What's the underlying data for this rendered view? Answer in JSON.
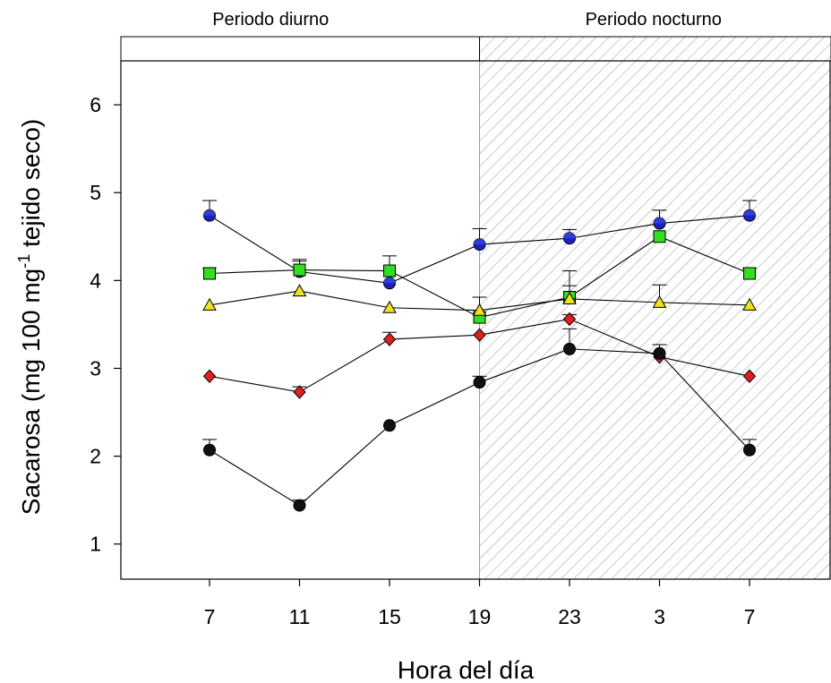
{
  "chart_data": {
    "type": "line",
    "xlabel": "Hora del día",
    "ylabel_main": "Sacarosa (mg 100 mg",
    "ylabel_sup": "-1",
    "ylabel_tail": " tejido seco)",
    "categories": [
      "7",
      "11",
      "15",
      "19",
      "23",
      "3",
      "7"
    ],
    "ylim": [
      0.6,
      6.5
    ],
    "yticks": [
      1,
      2,
      3,
      4,
      5,
      6
    ],
    "grid": false,
    "legend": "none",
    "periods": [
      {
        "label": "Periodo diurno",
        "from_index": -1,
        "to_index": 3,
        "hatched": false
      },
      {
        "label": "Periodo nocturno",
        "from_index": 3,
        "to_index": 7,
        "hatched": true
      }
    ],
    "series": [
      {
        "marker": "circle-half",
        "color": "#1f1fbf",
        "values": [
          4.74,
          4.1,
          3.97,
          4.41,
          4.48,
          4.65,
          4.74
        ],
        "errors": [
          0.17,
          0.12,
          0.0,
          0.18,
          0.1,
          0.15,
          0.17
        ]
      },
      {
        "marker": "square",
        "color": "#33dd22",
        "values": [
          4.08,
          4.12,
          4.11,
          3.58,
          3.81,
          4.5,
          4.08
        ],
        "errors": [
          0.06,
          0.12,
          0.17,
          0.23,
          0.3,
          0.0,
          0.06
        ]
      },
      {
        "marker": "triangle",
        "color": "#f0e020",
        "values": [
          3.72,
          3.88,
          3.69,
          3.66,
          3.79,
          3.75,
          3.72
        ],
        "errors": [
          0.0,
          0.0,
          0.0,
          0.0,
          0.15,
          0.2,
          0.0
        ]
      },
      {
        "marker": "diamond",
        "color": "#e02020",
        "values": [
          2.91,
          2.73,
          3.33,
          3.38,
          3.56,
          3.13,
          2.91
        ],
        "errors": [
          0.0,
          0.06,
          0.08,
          0.0,
          0.05,
          0.0,
          0.0
        ]
      },
      {
        "marker": "circle",
        "color": "#111111",
        "values": [
          2.07,
          1.44,
          2.35,
          2.84,
          3.22,
          3.17,
          2.07
        ],
        "errors": [
          0.12,
          0.06,
          0.0,
          0.07,
          0.23,
          0.1,
          0.12
        ]
      }
    ]
  }
}
